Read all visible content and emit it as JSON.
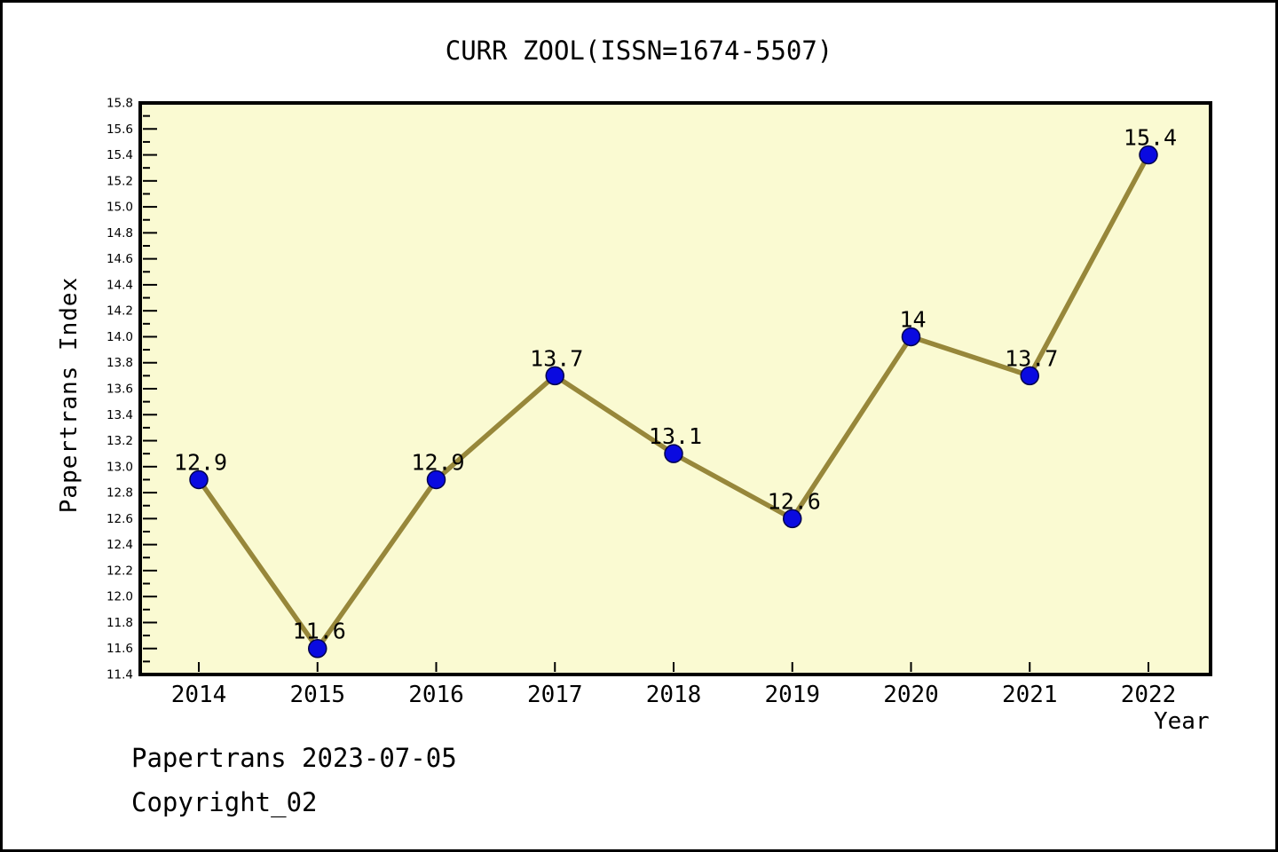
{
  "page": {
    "background": "#ffffff",
    "border_color": "#000000"
  },
  "footer": {
    "line1": "Papertrans 2023-07-05",
    "line2": "Copyright_02"
  },
  "chart_data": {
    "type": "line",
    "title": "CURR ZOOL(ISSN=1674-5507)",
    "xlabel": "Year",
    "ylabel": "Papertrans Index",
    "categories": [
      "2014",
      "2015",
      "2016",
      "2017",
      "2018",
      "2019",
      "2020",
      "2021",
      "2022"
    ],
    "series": [
      {
        "name": "Papertrans Index",
        "values": [
          12.9,
          11.6,
          12.9,
          13.7,
          13.1,
          12.6,
          14,
          13.7,
          15.4
        ]
      }
    ],
    "point_labels": [
      "12.9",
      "11.6",
      "12.9",
      "13.7",
      "13.1",
      "12.6",
      "14",
      "13.7",
      "15.4"
    ],
    "ylim": [
      11.4,
      15.8
    ],
    "ytick_major_step": 0.2,
    "ytick_minor_step": 0.1,
    "grid": false,
    "legend": false,
    "marker": "circle",
    "colors": {
      "line": "#97873a",
      "marker_fill": "#0a0ae0",
      "marker_edge": "#00004d",
      "plot_bg": "#fafad2",
      "axis": "#000000",
      "text": "#000000"
    }
  }
}
